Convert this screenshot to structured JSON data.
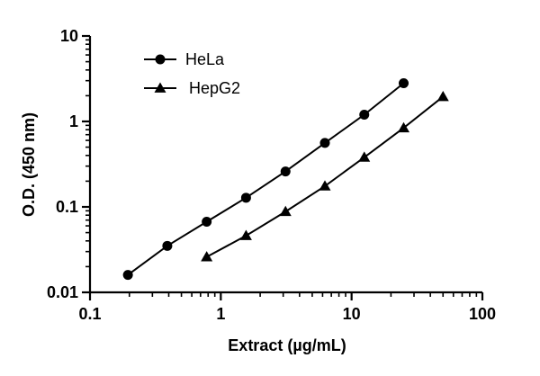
{
  "chart_data": {
    "type": "line",
    "title": "",
    "xlabel": "Extract (µg/mL)",
    "ylabel": "O.D. (450 nm)",
    "x_scale": "log",
    "y_scale": "log",
    "xlim": [
      0.1,
      100
    ],
    "ylim": [
      0.01,
      10
    ],
    "x_ticks": [
      "0.1",
      "1",
      "10",
      "100"
    ],
    "y_ticks": [
      "0.01",
      "0.1",
      "1",
      "10"
    ],
    "grid": false,
    "legend": "top-left",
    "series": [
      {
        "name": "HeLa",
        "marker": "circle",
        "x": [
          0.195,
          0.39,
          0.78,
          1.56,
          3.125,
          6.25,
          12.5,
          25
        ],
        "y": [
          0.016,
          0.035,
          0.067,
          0.128,
          0.26,
          0.56,
          1.2,
          2.8
        ]
      },
      {
        "name": "HepG2",
        "marker": "triangle",
        "x": [
          0.78,
          1.56,
          3.125,
          6.25,
          12.5,
          25,
          50
        ],
        "y": [
          0.026,
          0.046,
          0.088,
          0.175,
          0.38,
          0.84,
          1.95
        ]
      }
    ]
  }
}
